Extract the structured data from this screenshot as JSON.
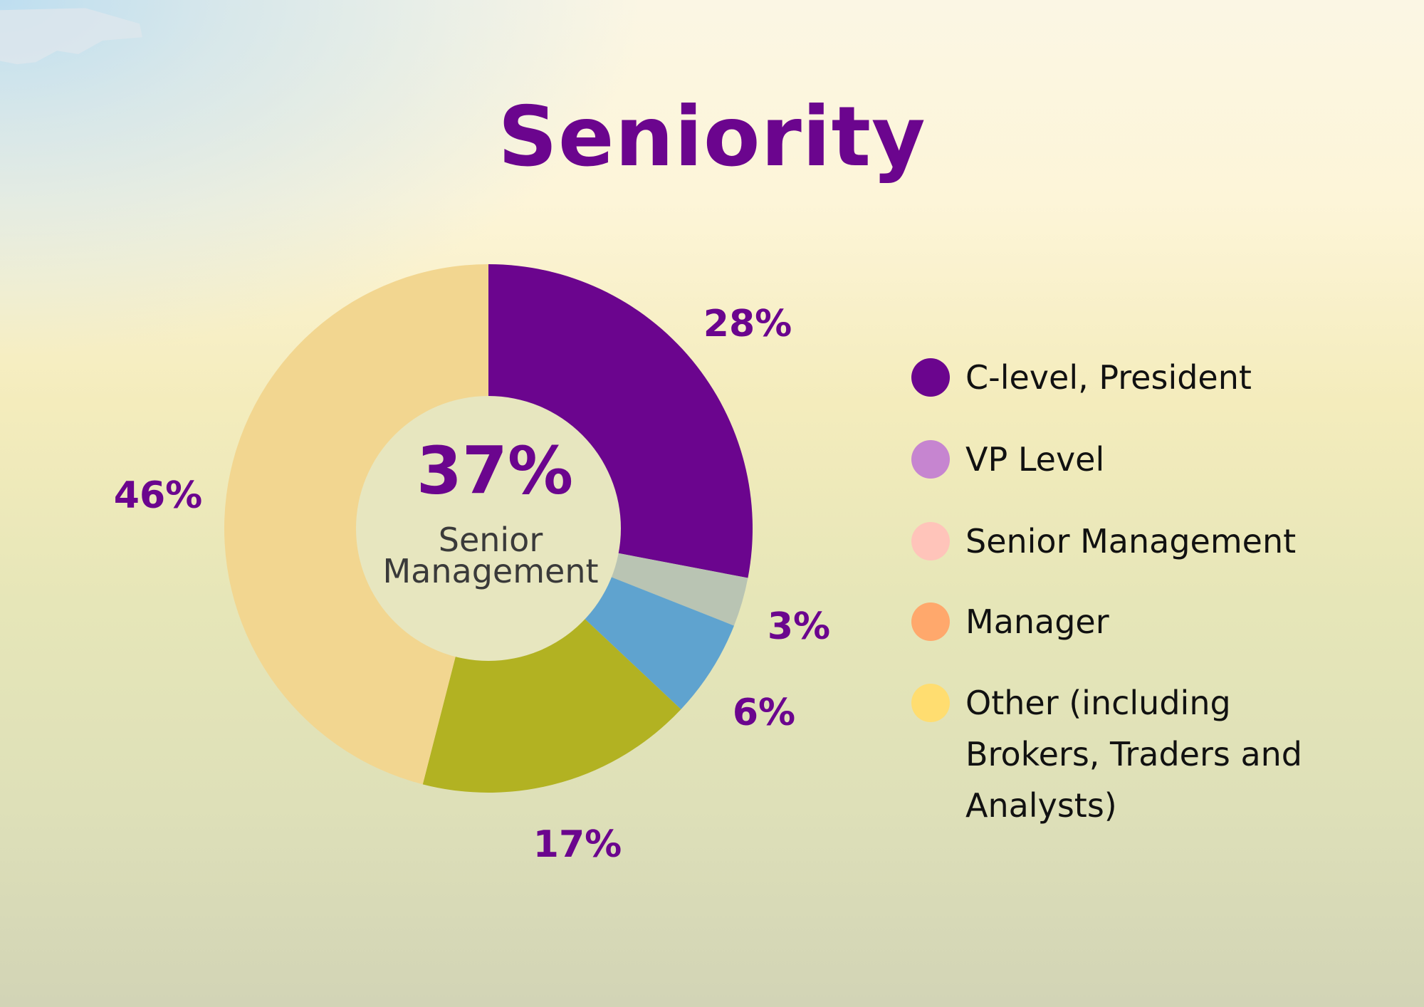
{
  "chart_data": {
    "type": "pie",
    "title": "Seniority",
    "donut": true,
    "center": {
      "value": "37%",
      "label_line1": "Senior",
      "label_line2": "Management"
    },
    "slices": [
      {
        "label": "28%",
        "value": 28,
        "color": "#6b058e"
      },
      {
        "label": "3%",
        "value": 3,
        "color": "#b9c4b3"
      },
      {
        "label": "6%",
        "value": 6,
        "color": "#5fa3cf"
      },
      {
        "label": "17%",
        "value": 17,
        "color": "#b2b222"
      },
      {
        "label": "46%",
        "value": 46,
        "color": "#f2d690"
      }
    ],
    "legend": [
      {
        "label": "C-level, President",
        "color": "#6b058e"
      },
      {
        "label": "VP Level",
        "color": "#c685d0"
      },
      {
        "label": "Senior Management",
        "color": "#ffc4ba"
      },
      {
        "label": "Manager",
        "color": "#ffa86c"
      },
      {
        "label": "Other (including Brokers, Traders and Analysts)",
        "color": "#ffdd70"
      }
    ],
    "legend_placement": "right"
  }
}
